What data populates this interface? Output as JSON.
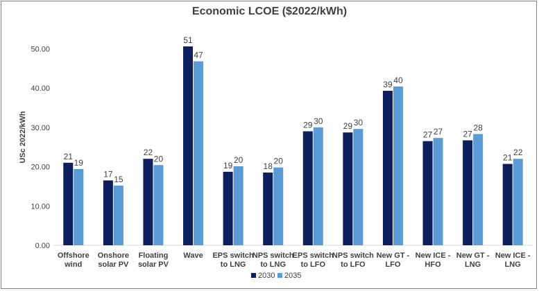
{
  "chart_data": {
    "type": "bar",
    "title": "Economic LCOE ($2022/kWh)",
    "ylabel": "USc 2022/kWh",
    "xlabel": "",
    "ylim": [
      0,
      55
    ],
    "yticks": [
      "0.00",
      "10.00",
      "20.00",
      "30.00",
      "40.00",
      "50.00"
    ],
    "ytick_values": [
      0,
      10,
      20,
      30,
      40,
      50
    ],
    "grid": false,
    "legend_position": "bottom",
    "categories": [
      [
        "Offshore",
        "wind"
      ],
      [
        "Onshore",
        "solar PV"
      ],
      [
        "Floating",
        "solar PV"
      ],
      [
        "Wave"
      ],
      [
        "EPS switch",
        "to LNG"
      ],
      [
        "NPS switch",
        "to LNG"
      ],
      [
        "EPS switch",
        "to LFO"
      ],
      [
        "NPS switch",
        "to LFO"
      ],
      [
        "New GT -",
        "LFO"
      ],
      [
        "New ICE -",
        "HFO"
      ],
      [
        "New GT -",
        "LNG"
      ],
      [
        "New ICE -",
        "LNG"
      ]
    ],
    "series": [
      {
        "name": "2030",
        "color": "#0d1f5c",
        "values": [
          21.0,
          16.5,
          22.0,
          50.6,
          18.7,
          18.5,
          29.0,
          28.7,
          39.3,
          26.5,
          26.7,
          20.7
        ],
        "labels": [
          "21",
          "17",
          "22",
          "51",
          "19",
          "18",
          "29",
          "29",
          "39",
          "27",
          "27",
          "21"
        ]
      },
      {
        "name": "2035",
        "color": "#5b9bd5",
        "values": [
          19.4,
          15.2,
          20.4,
          46.8,
          20.1,
          19.8,
          30.0,
          29.6,
          40.4,
          27.3,
          28.3,
          22.0
        ],
        "labels": [
          "19",
          "15",
          "20",
          "47",
          "20",
          "20",
          "30",
          "30",
          "40",
          "27",
          "28",
          "22"
        ]
      }
    ]
  }
}
